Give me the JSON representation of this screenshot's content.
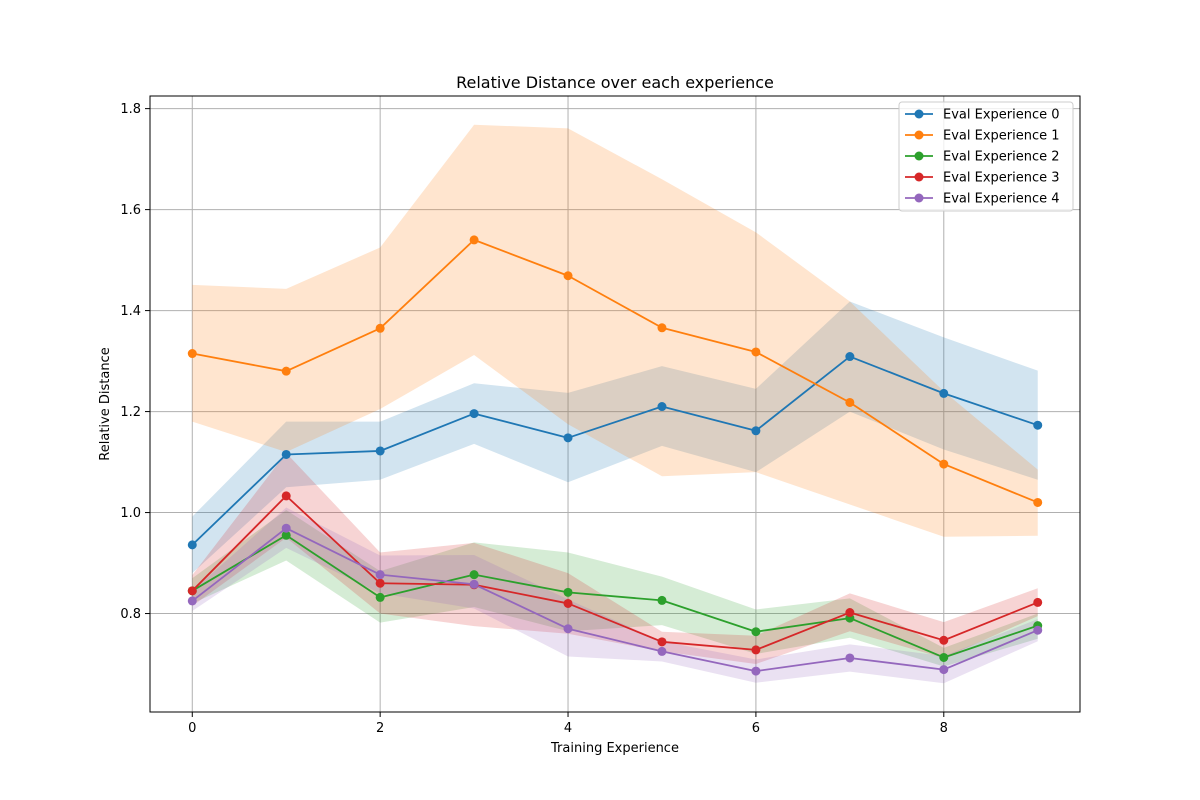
{
  "chart_data": {
    "type": "line",
    "title": "Relative Distance over each experience",
    "xlabel": "Training Experience",
    "ylabel": "Relative Distance",
    "x": [
      0,
      1,
      2,
      3,
      4,
      5,
      6,
      7,
      8,
      9
    ],
    "xlim": [
      -0.45,
      9.45
    ],
    "ylim": [
      0.605,
      1.825
    ],
    "xticks": [
      0,
      2,
      4,
      6,
      8
    ],
    "xtick_labels": [
      "0",
      "2",
      "4",
      "6",
      "8"
    ],
    "yticks": [
      0.8,
      1.0,
      1.2,
      1.4,
      1.6,
      1.8
    ],
    "ytick_labels": [
      "0.8",
      "1.0",
      "1.2",
      "1.4",
      "1.6",
      "1.8"
    ],
    "grid": true,
    "legend_position": "top-right",
    "series": [
      {
        "name": "Eval Experience 0",
        "color": "#1f77b4",
        "values": [
          0.936,
          1.115,
          1.122,
          1.196,
          1.148,
          1.21,
          1.162,
          1.309,
          1.236,
          1.173
        ],
        "lower": [
          0.88,
          1.05,
          1.065,
          1.136,
          1.06,
          1.132,
          1.08,
          1.2,
          1.125,
          1.065
        ],
        "upper": [
          0.992,
          1.18,
          1.18,
          1.256,
          1.237,
          1.29,
          1.245,
          1.418,
          1.347,
          1.281
        ]
      },
      {
        "name": "Eval Experience 1",
        "color": "#ff7f0e",
        "values": [
          1.315,
          1.28,
          1.365,
          1.54,
          1.469,
          1.366,
          1.318,
          1.218,
          1.096,
          1.02
        ],
        "lower": [
          1.18,
          1.12,
          1.205,
          1.312,
          1.175,
          1.072,
          1.08,
          1.016,
          0.952,
          0.954
        ],
        "upper": [
          1.451,
          1.443,
          1.525,
          1.768,
          1.761,
          1.66,
          1.555,
          1.418,
          1.24,
          1.085
        ]
      },
      {
        "name": "Eval Experience 2",
        "color": "#2ca02c",
        "values": [
          0.845,
          0.955,
          0.832,
          0.877,
          0.842,
          0.826,
          0.764,
          0.791,
          0.713,
          0.776
        ],
        "lower": [
          0.82,
          0.905,
          0.782,
          0.813,
          0.765,
          0.777,
          0.72,
          0.752,
          0.695,
          0.75
        ],
        "upper": [
          0.87,
          1.005,
          0.884,
          0.941,
          0.921,
          0.873,
          0.808,
          0.83,
          0.732,
          0.8
        ]
      },
      {
        "name": "Eval Experience 3",
        "color": "#d62728",
        "values": [
          0.845,
          1.033,
          0.86,
          0.857,
          0.82,
          0.744,
          0.728,
          0.802,
          0.747,
          0.822
        ],
        "lower": [
          0.815,
          0.95,
          0.8,
          0.775,
          0.76,
          0.725,
          0.7,
          0.765,
          0.712,
          0.795
        ],
        "upper": [
          0.876,
          1.118,
          0.921,
          0.94,
          0.88,
          0.764,
          0.756,
          0.84,
          0.783,
          0.85
        ]
      },
      {
        "name": "Eval Experience 4",
        "color": "#9467bd",
        "values": [
          0.825,
          0.969,
          0.877,
          0.858,
          0.77,
          0.725,
          0.686,
          0.712,
          0.689,
          0.767
        ],
        "lower": [
          0.805,
          0.93,
          0.84,
          0.81,
          0.715,
          0.705,
          0.663,
          0.685,
          0.662,
          0.745
        ],
        "upper": [
          0.845,
          1.01,
          0.915,
          0.916,
          0.828,
          0.745,
          0.709,
          0.739,
          0.716,
          0.789
        ]
      }
    ]
  }
}
